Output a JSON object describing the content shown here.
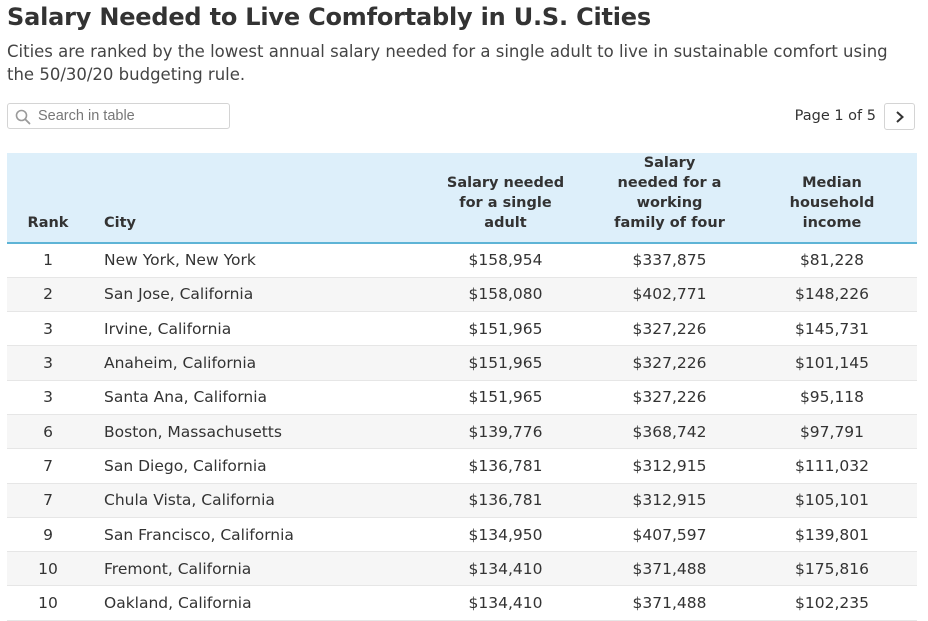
{
  "header": {
    "title": "Salary Needed to Live Comfortably in U.S. Cities",
    "subtitle": "Cities are ranked by the lowest annual salary needed for a single adult to live in sustainable comfort using the 50/30/20 budgeting rule."
  },
  "search": {
    "placeholder": "Search in table",
    "icon": "search-icon"
  },
  "pagination": {
    "label": "Page 1 of 5",
    "next_icon": "chevron-right-icon"
  },
  "table": {
    "columns": [
      "Rank",
      "City",
      "Salary needed for a single adult",
      "Salary needed for a working family of four",
      "Median household income"
    ],
    "rows": [
      [
        "1",
        "New York, New York",
        "$158,954",
        "$337,875",
        "$81,228"
      ],
      [
        "2",
        "San Jose, California",
        "$158,080",
        "$402,771",
        "$148,226"
      ],
      [
        "3",
        "Irvine, California",
        "$151,965",
        "$327,226",
        "$145,731"
      ],
      [
        "3",
        "Anaheim, California",
        "$151,965",
        "$327,226",
        "$101,145"
      ],
      [
        "3",
        "Santa Ana, California",
        "$151,965",
        "$327,226",
        "$95,118"
      ],
      [
        "6",
        "Boston, Massachusetts",
        "$139,776",
        "$368,742",
        "$97,791"
      ],
      [
        "7",
        "San Diego, California",
        "$136,781",
        "$312,915",
        "$111,032"
      ],
      [
        "7",
        "Chula Vista, California",
        "$136,781",
        "$312,915",
        "$105,101"
      ],
      [
        "9",
        "San Francisco, California",
        "$134,950",
        "$407,597",
        "$139,801"
      ],
      [
        "10",
        "Fremont, California",
        "$134,410",
        "$371,488",
        "$175,816"
      ],
      [
        "10",
        "Oakland, California",
        "$134,410",
        "$371,488",
        "$102,235"
      ]
    ]
  },
  "colors": {
    "header_bg": "#ddeffa",
    "header_rule": "#5eb4d6",
    "stripe": "#f6f6f6",
    "text": "#333333"
  }
}
